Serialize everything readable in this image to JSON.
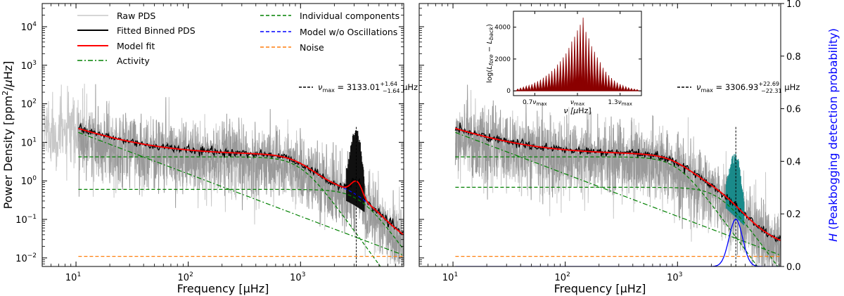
{
  "chart_data": [
    {
      "type": "line",
      "panel": "left",
      "xscale": "log",
      "yscale": "log",
      "xlabel": "Frequency [μHz]",
      "ylabel": "Power Density [ppm²/μHz]",
      "xlim": [
        5,
        8300
      ],
      "ylim": [
        0.006,
        40000
      ],
      "xticks": [
        {
          "v": 10,
          "base": "10",
          "exp": "1"
        },
        {
          "v": 100,
          "base": "10",
          "exp": "2"
        },
        {
          "v": 1000,
          "base": "10",
          "exp": "3"
        }
      ],
      "yticks": [
        {
          "v": 0.01,
          "base": "10",
          "exp": "−2"
        },
        {
          "v": 0.1,
          "base": "10",
          "exp": "−1"
        },
        {
          "v": 1,
          "base": "10",
          "exp": "0"
        },
        {
          "v": 10,
          "base": "10",
          "exp": "1"
        },
        {
          "v": 100,
          "base": "10",
          "exp": "2"
        },
        {
          "v": 1000,
          "base": "10",
          "exp": "3"
        },
        {
          "v": 10000,
          "base": "10",
          "exp": "4"
        }
      ],
      "numax": 3133.01,
      "numax_label": {
        "sym": "ν",
        "sub": "max",
        "eq": " = 3133.01",
        "up": "+1.64",
        "down": "−1.64",
        "unit": " μHz"
      },
      "components": {
        "activity_a": 300,
        "activity_b": 3.2,
        "gran1_amp": 4.2,
        "gran1_knee": 1000,
        "gran2_amp": 0.6,
        "gran2_knee": 3400,
        "noise": 0.011,
        "osc_height": 0.55,
        "osc_width": 300
      },
      "legend": [
        {
          "label": "Raw PDS",
          "color": "#c8c8c8",
          "style": "solid"
        },
        {
          "label": "Fitted Binned PDS",
          "color": "#000000",
          "style": "solid"
        },
        {
          "label": "Model fit",
          "color": "#ff0000",
          "style": "solid"
        },
        {
          "label": "Activity",
          "color": "#008000",
          "style": "dashdot"
        },
        {
          "label": "Individual components",
          "color": "#008000",
          "style": "dashed"
        },
        {
          "label": "Model w/o Oscillations",
          "color": "#0000ff",
          "style": "dashed"
        },
        {
          "label": "Noise",
          "color": "#ff7f0e",
          "style": "dashed"
        }
      ]
    },
    {
      "type": "line",
      "panel": "right",
      "xscale": "log",
      "yscale": "log",
      "xlabel": "Frequency [μHz]",
      "ylabel_right": {
        "h": "H",
        "rest": " (Peakbogging detection probability)"
      },
      "xlim": [
        5,
        8300
      ],
      "ylim": [
        0.006,
        40000
      ],
      "y2lim": [
        0,
        1
      ],
      "xticks": [
        {
          "v": 10,
          "base": "10",
          "exp": "1"
        },
        {
          "v": 100,
          "base": "10",
          "exp": "2"
        },
        {
          "v": 1000,
          "base": "10",
          "exp": "3"
        }
      ],
      "y2ticks": [
        "0.0",
        "0.2",
        "0.4",
        "0.6",
        "0.8",
        "1.0"
      ],
      "numax": 3306.93,
      "numax_label": {
        "sym": "ν",
        "sub": "max",
        "eq": " = 3306.93",
        "up": "+22.69",
        "down": "−22.31",
        "unit": " μHz"
      },
      "components": {
        "activity_a": 300,
        "activity_b": 3.2,
        "gran1_amp": 4.2,
        "gran1_knee": 1000,
        "gran2_amp": 0.68,
        "gran2_knee": 2400,
        "noise": 0.011,
        "osc_height": 0,
        "osc_width": 300
      },
      "detection_curve": {
        "peak": 0.18,
        "center": 3306.93,
        "width_log": 0.06
      },
      "inset": {
        "ylabel": "log(L_fore − L_back)",
        "ylabel_parts": {
          "pre": "log(",
          "l1": "L",
          "s1": "fore",
          "mid": " − ",
          "l2": "L",
          "s2": "back",
          "post": ")"
        },
        "xlabel": {
          "pre": "ν [",
          "mu": "μ",
          "post": "Hz]"
        },
        "yticks": [
          0,
          2000,
          4000
        ],
        "ylim": [
          -300,
          5000
        ],
        "xticks": [
          {
            "pos": 0.7,
            "pre": "0.7",
            "sym": "ν",
            "sub": "max"
          },
          {
            "pos": 1.0,
            "pre": "",
            "sym": "ν",
            "sub": "max"
          },
          {
            "pos": 1.3,
            "pre": "1.3",
            "sym": "ν",
            "sub": "max"
          }
        ],
        "xlim": [
          0.55,
          1.45
        ],
        "peaks": [
          120,
          180,
          240,
          300,
          340,
          420,
          520,
          600,
          700,
          820,
          950,
          1080,
          1250,
          1400,
          1650,
          1850,
          2100,
          2350,
          2700,
          3100,
          3400,
          3800,
          4150,
          4600,
          3700,
          3300,
          2800,
          2450,
          2100,
          1800,
          1450,
          1200,
          980,
          800,
          650,
          520,
          420,
          330,
          260,
          200,
          150,
          110,
          80
        ]
      }
    }
  ]
}
